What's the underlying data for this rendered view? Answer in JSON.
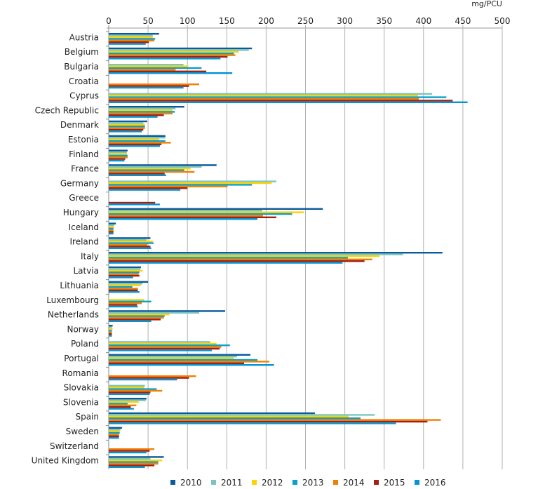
{
  "chart_data": {
    "type": "bar",
    "orientation": "horizontal",
    "unit_label": "mg/PCU",
    "xlim": [
      0,
      500
    ],
    "x_ticks": [
      "0",
      "50",
      "100",
      "150",
      "200",
      "250",
      "300",
      "350",
      "400",
      "450",
      "500"
    ],
    "grid": true,
    "legend_position": "bottom",
    "categories": [
      "Austria",
      "Belgium",
      "Bulgaria",
      "Croatia",
      "Cyprus",
      "Czech Republic",
      "Denmark",
      "Estonia",
      "Finland",
      "France",
      "Germany",
      "Greece",
      "Hungary",
      "Iceland",
      "Ireland",
      "Italy",
      "Latvia",
      "Lithuania",
      "Luxembourg",
      "Netherlands",
      "Norway",
      "Poland",
      "Portugal",
      "Romania",
      "Slovakia",
      "Slovenia",
      "Spain",
      "Sweden",
      "Switzerland",
      "United Kingdom"
    ],
    "series": [
      {
        "name": "2010",
        "color": "#0a5a9c",
        "values": [
          64,
          182,
          null,
          null,
          null,
          96,
          49,
          72,
          24,
          137,
          null,
          null,
          272,
          9,
          53,
          424,
          41,
          50,
          null,
          148,
          5,
          null,
          180,
          null,
          null,
          48,
          262,
          17,
          null,
          70
        ]
      },
      {
        "name": "2011",
        "color": "#7cc5bf",
        "values": [
          56,
          178,
          95,
          null,
          411,
          85,
          44,
          72,
          23,
          118,
          213,
          null,
          195,
          7,
          48,
          374,
          40,
          43,
          null,
          115,
          4,
          129,
          163,
          null,
          46,
          47,
          338,
          15,
          null,
          53
        ]
      },
      {
        "name": "2012",
        "color": "#ffd200",
        "values": [
          56,
          165,
          101,
          null,
          393,
          81,
          46,
          64,
          23,
          104,
          207,
          null,
          248,
          7,
          56,
          344,
          43,
          41,
          45,
          77,
          5,
          137,
          159,
          null,
          45,
          38,
          305,
          14,
          null,
          68
        ]
      },
      {
        "name": "2013",
        "color": "#0aa0c8",
        "values": [
          59,
          159,
          118,
          null,
          429,
          84,
          46,
          72,
          24,
          96,
          182,
          null,
          233,
          6,
          57,
          304,
          39,
          30,
          54,
          71,
          4,
          154,
          189,
          null,
          61,
          24,
          320,
          14,
          null,
          63
        ]
      },
      {
        "name": "2014",
        "color": "#f08000",
        "values": [
          58,
          161,
          85,
          115,
          394,
          81,
          46,
          79,
          24,
          109,
          151,
          null,
          196,
          6,
          49,
          335,
          38,
          37,
          42,
          70,
          4,
          143,
          204,
          111,
          68,
          35,
          422,
          13,
          58,
          63
        ]
      },
      {
        "name": "2015",
        "color": "#a52010",
        "values": [
          51,
          151,
          124,
          102,
          437,
          70,
          44,
          67,
          21,
          71,
          100,
          59,
          213,
          6,
          53,
          325,
          39,
          37,
          36,
          66,
          4,
          141,
          172,
          102,
          53,
          28,
          405,
          13,
          52,
          58
        ]
      },
      {
        "name": "2016",
        "color": "#0096d6",
        "values": [
          47,
          142,
          157,
          95,
          456,
          62,
          42,
          65,
          20,
          73,
          91,
          65,
          189,
          6,
          54,
          297,
          31,
          39,
          37,
          54,
          4,
          131,
          210,
          87,
          52,
          32,
          365,
          13,
          48,
          46
        ]
      }
    ]
  }
}
